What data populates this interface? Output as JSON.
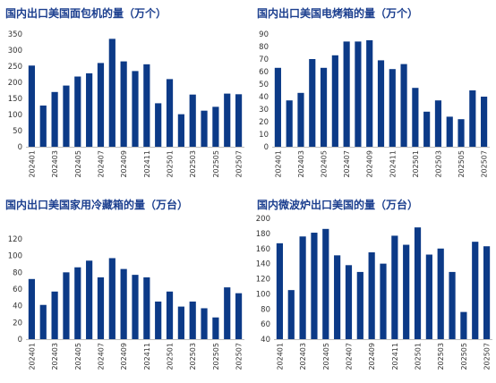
{
  "chart_data": [
    {
      "type": "bar",
      "title": "国内出口美国面包机的量（万个）",
      "categories": [
        "202401",
        "202402",
        "202403",
        "202404",
        "202405",
        "202406",
        "202407",
        "202408",
        "202409",
        "202410",
        "202411",
        "202412",
        "202501",
        "202502",
        "202503",
        "202504",
        "202505",
        "202506",
        "202507"
      ],
      "values": [
        252,
        128,
        170,
        190,
        218,
        228,
        260,
        335,
        265,
        235,
        256,
        135,
        210,
        101,
        162,
        112,
        124,
        165,
        163
      ],
      "ylim": [
        0,
        350
      ],
      "yticks": [
        0,
        50,
        100,
        150,
        200,
        250,
        300,
        350
      ],
      "xtick_labels": [
        "202401",
        "202403",
        "202405",
        "202407",
        "202409",
        "202411",
        "202501",
        "202503",
        "202505",
        "202507"
      ],
      "color": "#0c3a87"
    },
    {
      "type": "bar",
      "title": "国内出口美国电烤箱的量（万个）",
      "categories": [
        "202401",
        "202402",
        "202403",
        "202404",
        "202405",
        "202406",
        "202407",
        "202408",
        "202409",
        "202410",
        "202411",
        "202412",
        "202501",
        "202502",
        "202503",
        "202504",
        "202505",
        "202506",
        "202507"
      ],
      "values": [
        63,
        37,
        43,
        70,
        63,
        73,
        84,
        84,
        85,
        69,
        62,
        66,
        47,
        28,
        37,
        24,
        22,
        45,
        40
      ],
      "ylim": [
        0,
        90
      ],
      "yticks": [
        0,
        10,
        20,
        30,
        40,
        50,
        60,
        70,
        80,
        90
      ],
      "xtick_labels": [
        "202401",
        "202403",
        "202405",
        "202407",
        "202409",
        "202411",
        "202501",
        "202503",
        "202505",
        "202507"
      ],
      "color": "#0c3a87"
    },
    {
      "type": "bar",
      "title": "国内出口美国家用冷藏箱的量（万台）",
      "categories": [
        "202401",
        "202402",
        "202403",
        "202404",
        "202405",
        "202406",
        "202407",
        "202408",
        "202409",
        "202410",
        "202411",
        "202412",
        "202501",
        "202502",
        "202503",
        "202504",
        "202505",
        "202506",
        "202507"
      ],
      "values": [
        72,
        41,
        57,
        80,
        86,
        94,
        74,
        97,
        84,
        77,
        74,
        45,
        57,
        39,
        45,
        37,
        26,
        62,
        55
      ],
      "ylim": [
        0,
        120
      ],
      "yticks": [
        0,
        20,
        40,
        60,
        80,
        100,
        120
      ],
      "xtick_labels": [
        "202401",
        "202403",
        "202405",
        "202407",
        "202409",
        "202411",
        "202501",
        "202503",
        "202505",
        "202507"
      ],
      "color": "#0c3a87"
    },
    {
      "type": "bar",
      "title": "国内微波炉出口美国的量（万台）",
      "categories": [
        "202401",
        "202402",
        "202403",
        "202404",
        "202405",
        "202406",
        "202407",
        "202408",
        "202409",
        "202410",
        "202411",
        "202412",
        "202501",
        "202502",
        "202503",
        "202504",
        "202505",
        "202506",
        "202507"
      ],
      "values": [
        167,
        105,
        176,
        181,
        186,
        151,
        138,
        129,
        155,
        140,
        177,
        165,
        188,
        152,
        160,
        129,
        76,
        169,
        163
      ],
      "ylim": [
        40,
        200
      ],
      "yticks": [
        40,
        60,
        80,
        100,
        120,
        140,
        160,
        180,
        200
      ],
      "xtick_labels": [
        "202401",
        "202403",
        "202405",
        "202407",
        "202409",
        "202411",
        "202501",
        "202503",
        "202505",
        "202507"
      ],
      "color": "#0c3a87"
    }
  ]
}
